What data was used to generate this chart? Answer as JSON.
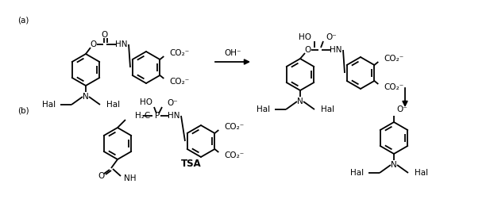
{
  "figsize": [
    6.17,
    2.56
  ],
  "dpi": 100,
  "bg_color": "#ffffff",
  "label_a": "(a)",
  "label_b": "(b)",
  "arrow_oh": "OH⁻",
  "tsa_label": "TSA",
  "lc": "#000000",
  "lw": 1.3,
  "fs": 7.5,
  "fs_bold": 8.5
}
